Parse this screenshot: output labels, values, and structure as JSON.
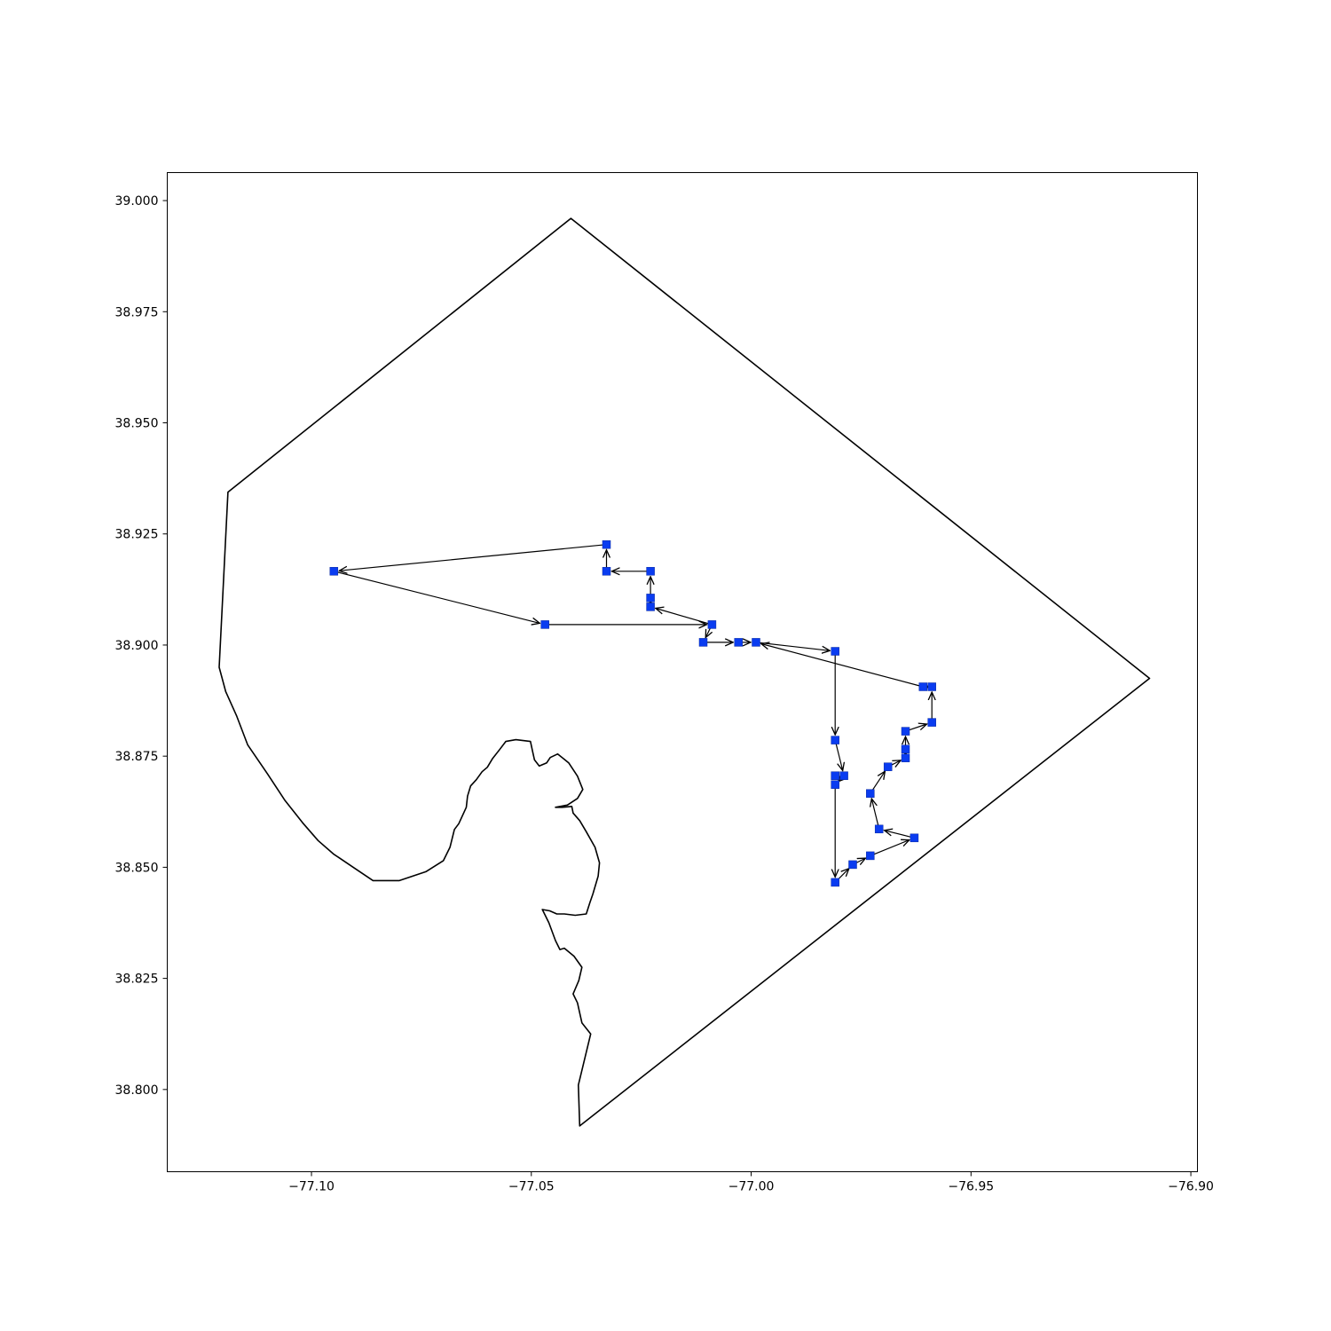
{
  "chart_data": {
    "type": "scatter",
    "title": "",
    "xlabel": "",
    "ylabel": "",
    "xlim": [
      -77.1328,
      -76.8985
    ],
    "ylim": [
      38.7815,
      39.0063
    ],
    "grid": false,
    "x_ticks": [
      "−77.10",
      "−77.05",
      "−77.00",
      "−76.95",
      "−76.90"
    ],
    "x_tick_values": [
      -77.1,
      -77.05,
      -77.0,
      -76.95,
      -76.9
    ],
    "y_ticks": [
      "38.800",
      "38.825",
      "38.850",
      "38.875",
      "38.900",
      "38.925",
      "38.950",
      "38.975",
      "39.000"
    ],
    "y_tick_values": [
      38.8,
      38.825,
      38.85,
      38.875,
      38.9,
      38.925,
      38.95,
      38.975,
      39.0
    ],
    "marker_color": "#0a3cf0",
    "boundary": [
      [
        -77.041,
        38.996
      ],
      [
        -76.9094,
        38.8925
      ],
      [
        -77.039,
        38.7918
      ],
      [
        -77.0393,
        38.801
      ],
      [
        -77.0365,
        38.8125
      ],
      [
        -77.0385,
        38.815
      ],
      [
        -77.0395,
        38.8195
      ],
      [
        -77.0405,
        38.8215
      ],
      [
        -77.0392,
        38.8245
      ],
      [
        -77.0385,
        38.8275
      ],
      [
        -77.0403,
        38.83
      ],
      [
        -77.0425,
        38.8318
      ],
      [
        -77.0435,
        38.8315
      ],
      [
        -77.0445,
        38.8335
      ],
      [
        -77.046,
        38.8375
      ],
      [
        -77.0475,
        38.8405
      ],
      [
        -77.0458,
        38.8402
      ],
      [
        -77.0442,
        38.8395
      ],
      [
        -77.0425,
        38.8395
      ],
      [
        -77.04,
        38.8392
      ],
      [
        -77.0375,
        38.8395
      ],
      [
        -77.0367,
        38.842
      ],
      [
        -77.036,
        38.844
      ],
      [
        -77.0348,
        38.848
      ],
      [
        -77.0345,
        38.851
      ],
      [
        -77.0355,
        38.8545
      ],
      [
        -77.0375,
        38.858
      ],
      [
        -77.039,
        38.8605
      ],
      [
        -77.0405,
        38.8622
      ],
      [
        -77.0408,
        38.8637
      ],
      [
        -77.043,
        38.8635
      ],
      [
        -77.0445,
        38.8635
      ],
      [
        -77.0418,
        38.864
      ],
      [
        -77.0395,
        38.8655
      ],
      [
        -77.0383,
        38.8675
      ],
      [
        -77.0395,
        38.8705
      ],
      [
        -77.0415,
        38.8735
      ],
      [
        -77.044,
        38.8755
      ],
      [
        -77.0457,
        38.8747
      ],
      [
        -77.0465,
        38.8735
      ],
      [
        -77.0482,
        38.8728
      ],
      [
        -77.0493,
        38.8742
      ],
      [
        -77.0497,
        38.876
      ],
      [
        -77.0502,
        38.8783
      ],
      [
        -77.0535,
        38.8787
      ],
      [
        -77.0558,
        38.8783
      ],
      [
        -77.0572,
        38.8765
      ],
      [
        -77.0588,
        38.8745
      ],
      [
        -77.06,
        38.8725
      ],
      [
        -77.0612,
        38.8715
      ],
      [
        -77.0625,
        38.8697
      ],
      [
        -77.0638,
        38.8683
      ],
      [
        -77.0645,
        38.866
      ],
      [
        -77.0648,
        38.8635
      ],
      [
        -77.0665,
        38.8598
      ],
      [
        -77.0675,
        38.8585
      ],
      [
        -77.0685,
        38.8545
      ],
      [
        -77.07,
        38.8515
      ],
      [
        -77.074,
        38.849
      ],
      [
        -77.08,
        38.847
      ],
      [
        -77.086,
        38.847
      ],
      [
        -77.0905,
        38.85
      ],
      [
        -77.095,
        38.853
      ],
      [
        -77.0985,
        38.856
      ],
      [
        -77.102,
        38.86
      ],
      [
        -77.106,
        38.865
      ],
      [
        -77.11,
        38.871
      ],
      [
        -77.1145,
        38.8775
      ],
      [
        -77.117,
        38.884
      ],
      [
        -77.1195,
        38.8895
      ],
      [
        -77.121,
        38.895
      ],
      [
        -77.119,
        38.9344
      ],
      [
        -77.041,
        38.996
      ]
    ],
    "route": [
      [
        -77.0329,
        38.9226
      ],
      [
        -77.0949,
        38.9166
      ],
      [
        -77.0469,
        38.9046
      ],
      [
        -77.0089,
        38.9046
      ],
      [
        -77.0229,
        38.9086
      ],
      [
        -77.0229,
        38.9106
      ],
      [
        -77.0229,
        38.9166
      ],
      [
        -77.0329,
        38.9166
      ],
      [
        -77.0329,
        38.9226
      ]
    ],
    "route2": [
      [
        -77.0089,
        38.9046
      ],
      [
        -77.0109,
        38.9006
      ],
      [
        -77.0029,
        38.9006
      ],
      [
        -76.9989,
        38.9006
      ],
      [
        -76.9809,
        38.8986
      ],
      [
        -76.9809,
        38.8786
      ],
      [
        -76.9789,
        38.8706
      ],
      [
        -76.9809,
        38.8686
      ],
      [
        -76.9809,
        38.8466
      ],
      [
        -76.9769,
        38.8506
      ],
      [
        -76.9729,
        38.8526
      ],
      [
        -76.9629,
        38.8566
      ],
      [
        -76.9709,
        38.8586
      ],
      [
        -76.9729,
        38.8666
      ],
      [
        -76.9689,
        38.8726
      ],
      [
        -76.9649,
        38.8746
      ],
      [
        -76.9649,
        38.8766
      ],
      [
        -76.9649,
        38.8806
      ],
      [
        -76.9589,
        38.8826
      ],
      [
        -76.9589,
        38.8906
      ],
      [
        -76.9609,
        38.8906
      ],
      [
        -76.9989,
        38.9006
      ]
    ],
    "extra_points": [
      [
        -77.0229,
        38.9106
      ],
      [
        -77.0229,
        38.9086
      ],
      [
        -76.9809,
        38.8706
      ],
      [
        -76.9809,
        38.8686
      ],
      [
        -76.9649,
        38.8766
      ],
      [
        -76.9649,
        38.8746
      ],
      [
        -76.9609,
        38.8906
      ],
      [
        -76.9589,
        38.8906
      ]
    ]
  }
}
